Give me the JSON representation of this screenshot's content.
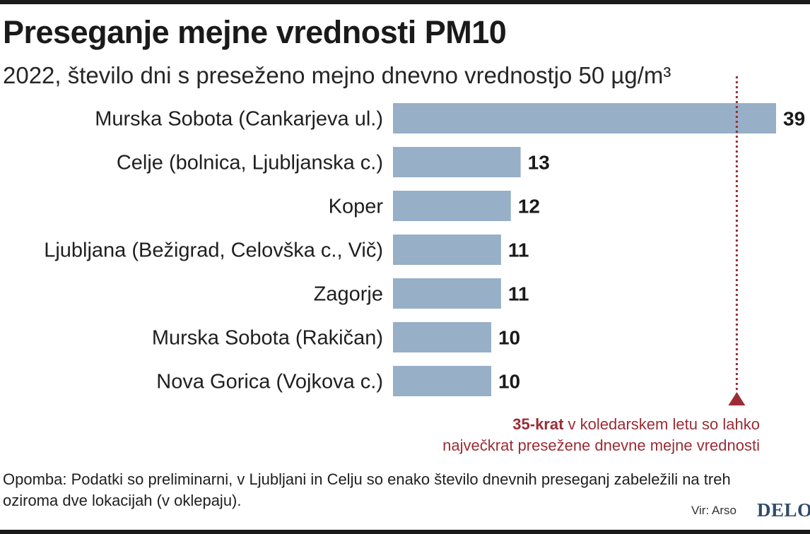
{
  "header": {
    "title": "Preseganje mejne vrednosti PM10",
    "subtitle": "2022, število dni s preseženo mejno dnevno vrednostjo 50 µg/m³"
  },
  "chart_data": {
    "type": "bar",
    "orientation": "horizontal",
    "categories": [
      "Murska Sobota (Cankarjeva ul.)",
      "Celje (bolnica, Ljubljanska c.)",
      "Koper",
      "Ljubljana (Bežigrad, Celovška c., Vič)",
      "Zagorje",
      "Murska Sobota (Rakičan)",
      "Nova Gorica (Vojkova c.)"
    ],
    "values": [
      39,
      13,
      12,
      11,
      11,
      10,
      10
    ],
    "data_labels": [
      "39",
      "13",
      "12",
      "11",
      "11",
      "10",
      "10"
    ],
    "reference_line": {
      "value": 35,
      "style": "dotted",
      "color": "#9b2c35"
    },
    "xlim": [
      0,
      39
    ],
    "grid": false,
    "bar_color": "#97afc7"
  },
  "annotation": {
    "bold": "35-krat",
    "line1_rest": " v koledarskem letu so lahko",
    "line2": "največkrat presežene dnevne mejne vrednosti"
  },
  "footer": {
    "note": "Opomba: Podatki so preliminarni, v Ljubljani in Celju so enako število dnevnih preseganj zabeležili na treh oziroma dve lokacijah (v oklepaju).",
    "source": "Vir: Arso",
    "logo": "DELO"
  }
}
